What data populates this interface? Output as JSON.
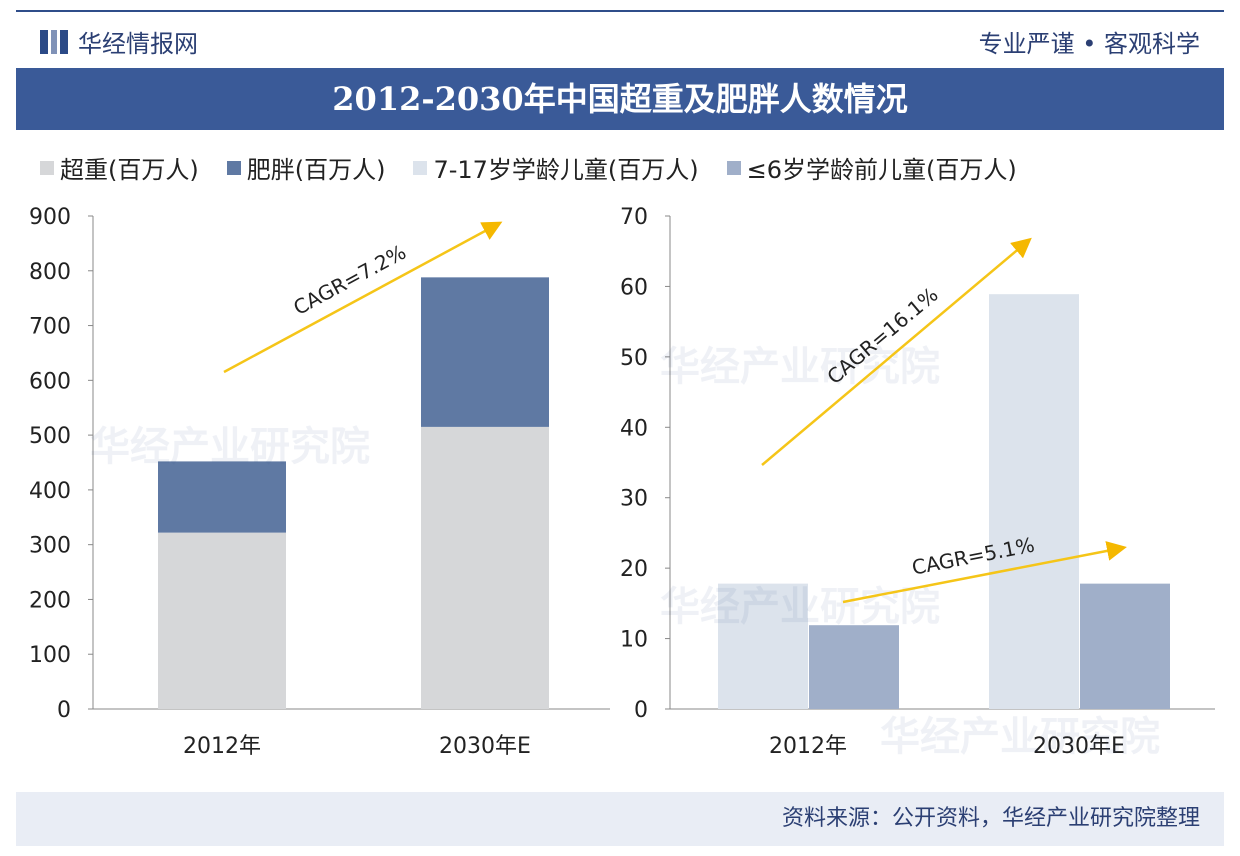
{
  "header": {
    "brand": "华经情报网",
    "slogan": "专业严谨 • 客观科学",
    "title": "2012-2030年中国超重及肥胖人数情况"
  },
  "legend": [
    {
      "label": "超重(百万人)",
      "color": "#d6d7d9"
    },
    {
      "label": "肥胖(百万人)",
      "color": "#5f79a3"
    },
    {
      "label": "7-17岁学龄儿童(百万人)",
      "color": "#dce3ec"
    },
    {
      "label": "≤6岁学龄前儿童(百万人)",
      "color": "#a0afc9"
    }
  ],
  "chart_data": [
    {
      "type": "bar",
      "stacked": true,
      "categories": [
        "2012年",
        "2030年E"
      ],
      "ylim": [
        0,
        900
      ],
      "yticks": [
        0,
        100,
        200,
        300,
        400,
        500,
        600,
        700,
        800,
        900
      ],
      "series": [
        {
          "name": "超重(百万人)",
          "values": [
            322,
            515
          ],
          "color": "#d6d7d9"
        },
        {
          "name": "肥胖(百万人)",
          "values": [
            130,
            273
          ],
          "color": "#5f79a3"
        }
      ],
      "annotations": [
        {
          "text": "CAGR=7.2%"
        }
      ]
    },
    {
      "type": "bar",
      "stacked": false,
      "categories": [
        "2012年",
        "2030年E"
      ],
      "ylim": [
        0,
        70
      ],
      "yticks": [
        0,
        10,
        20,
        30,
        40,
        50,
        60,
        70
      ],
      "series": [
        {
          "name": "7-17岁学龄儿童(百万人)",
          "values": [
            17.8,
            58.9
          ],
          "color": "#dce3ec"
        },
        {
          "name": "≤6岁学龄前儿童(百万人)",
          "values": [
            11.9,
            17.8
          ],
          "color": "#a0afc9"
        }
      ],
      "annotations": [
        {
          "text": "CAGR=16.1%"
        },
        {
          "text": "CAGR=5.1%"
        }
      ]
    }
  ],
  "watermark": "华经产业研究院",
  "footer": {
    "source": "资料来源：公开资料，华经产业研究院整理"
  }
}
